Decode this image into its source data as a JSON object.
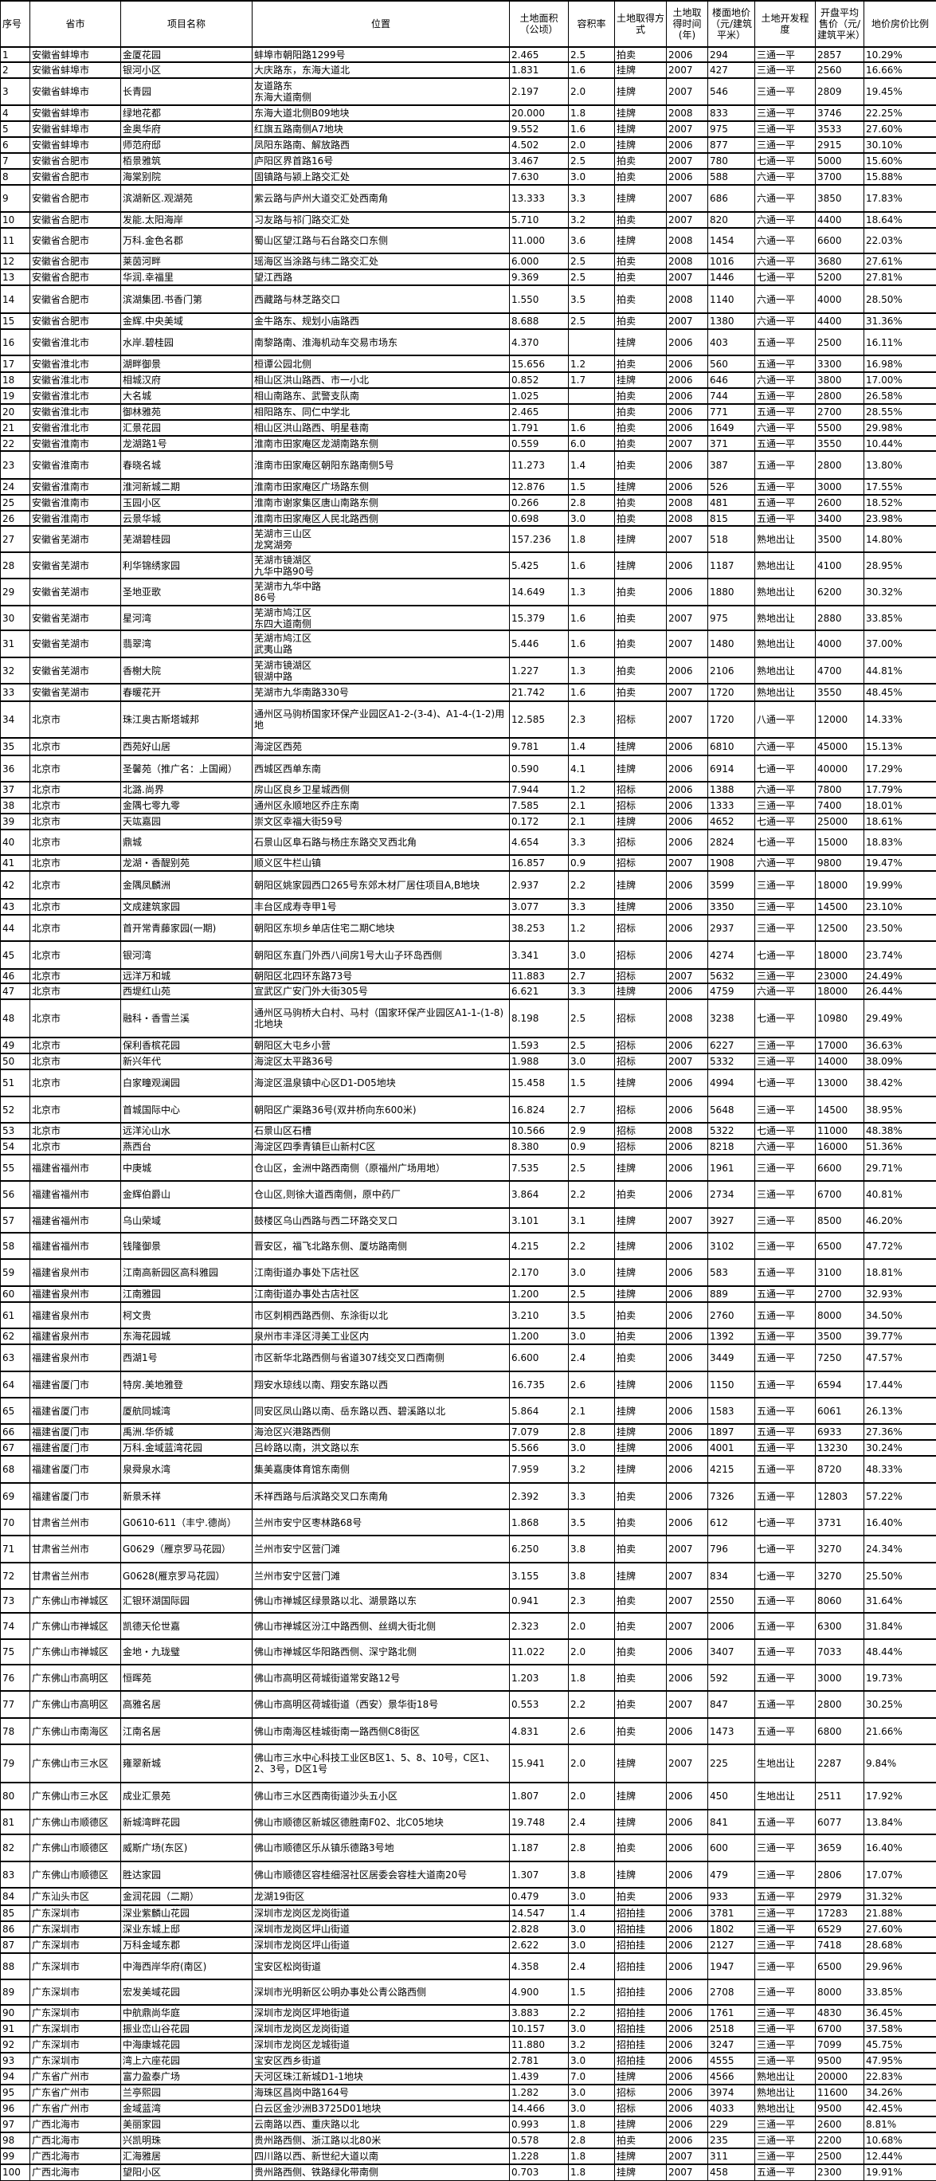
{
  "columns": [
    "序号",
    "省市",
    "项目名称",
    "位置",
    "土地面积（公顷）",
    "容积率",
    "土地取得方式",
    "土地取得时间(年)",
    "楼面地价（元/建筑平米）",
    "土地开发程度",
    "开盘平均售价（元/建筑平米）",
    "地价房价比例"
  ],
  "rows": [
    [
      "1",
      "安徽省蚌埠市",
      "金厦花园",
      "蚌埠市朝阳路1299号",
      "2.465",
      "2.5",
      "拍卖",
      "2006",
      "294",
      "三通一平",
      "2857",
      "10.29%"
    ],
    [
      "2",
      "安徽省蚌埠市",
      "银河小区",
      "大庆路东，东海大道北",
      "1.831",
      "1.6",
      "挂牌",
      "2007",
      "427",
      "三通一平",
      "2560",
      "16.66%"
    ],
    [
      "3",
      "安徽省蚌埠市",
      "长青园",
      "友道路东\n东海大道南侧",
      "2.197",
      "2.0",
      "挂牌",
      "2007",
      "546",
      "三通一平",
      "2809",
      "19.45%"
    ],
    [
      "4",
      "安徽省蚌埠市",
      "绿地花都",
      "东海大道北侧B09地块",
      "20.000",
      "1.8",
      "挂牌",
      "2008",
      "833",
      "三通一平",
      "3746",
      "22.25%"
    ],
    [
      "5",
      "安徽省蚌埠市",
      "金奥华府",
      "红旗五路南侧A7地块",
      "9.552",
      "1.6",
      "挂牌",
      "2007",
      "975",
      "三通一平",
      "3533",
      "27.60%"
    ],
    [
      "6",
      "安徽省蚌埠市",
      "师范府邸",
      "凤阳东路南、解放路西",
      "4.502",
      "2.0",
      "挂牌",
      "2006",
      "877",
      "三通一平",
      "2915",
      "30.10%"
    ],
    [
      "7",
      "安徽省合肥市",
      "栢景雅筑",
      "庐阳区界首路16号",
      "3.467",
      "2.5",
      "拍卖",
      "2007",
      "780",
      "七通一平",
      "5000",
      "15.60%"
    ],
    [
      "8",
      "安徽省合肥市",
      "海棠别院",
      "固镇路与颍上路交汇处",
      "7.630",
      "3.0",
      "拍卖",
      "2006",
      "588",
      "六通一平",
      "3700",
      "15.88%"
    ],
    [
      "9",
      "安徽省合肥市",
      "滨湖新区.观湖苑",
      "紫云路与庐州大道交汇处西南角",
      "13.333",
      "3.3",
      "挂牌",
      "2007",
      "686",
      "六通一平",
      "3850",
      "17.83%"
    ],
    [
      "10",
      "安徽省合肥市",
      "发能.太阳海岸",
      "习友路与祁门路交汇处",
      "5.710",
      "3.2",
      "拍卖",
      "2007",
      "820",
      "六通一平",
      "4400",
      "18.64%"
    ],
    [
      "11",
      "安徽省合肥市",
      "万科.金色名郡",
      "蜀山区望江路与石台路交口东侧",
      "11.000",
      "3.6",
      "挂牌",
      "2008",
      "1454",
      "六通一平",
      "6600",
      "22.03%"
    ],
    [
      "12",
      "安徽省合肥市",
      "莱茵河畔",
      "瑶海区当涂路与纬二路交汇处",
      "6.000",
      "2.5",
      "拍卖",
      "2008",
      "1016",
      "六通一平",
      "3680",
      "27.61%"
    ],
    [
      "13",
      "安徽省合肥市",
      "华润.幸福里",
      "望江西路",
      "9.369",
      "2.5",
      "拍卖",
      "2007",
      "1446",
      "七通一平",
      "5200",
      "27.81%"
    ],
    [
      "14",
      "安徽省合肥市",
      "滨湖集团.书香门第",
      "西藏路与林芝路交口",
      "1.550",
      "3.5",
      "拍卖",
      "2008",
      "1140",
      "六通一平",
      "4000",
      "28.50%"
    ],
    [
      "15",
      "安徽省合肥市",
      "金辉.中央美域",
      "金牛路东、规划小庙路西",
      "8.688",
      "2.5",
      "拍卖",
      "2007",
      "1380",
      "六通一平",
      "4400",
      "31.36%"
    ],
    [
      "16",
      "安徽省淮北市",
      "水岸.碧桂园",
      "南黎路南、淮海机动车交易市场东",
      "4.370",
      "",
      "挂牌",
      "2006",
      "403",
      "五通一平",
      "2500",
      "16.11%"
    ],
    [
      "17",
      "安徽省淮北市",
      "湖畔御景",
      "桓谭公园北侧",
      "15.656",
      "1.2",
      "拍卖",
      "2006",
      "560",
      "五通一平",
      "3300",
      "16.98%"
    ],
    [
      "18",
      "安徽省淮北市",
      "相城汉府",
      "相山区洪山路西、市一小北",
      "0.852",
      "1.7",
      "挂牌",
      "2006",
      "646",
      "六通一平",
      "3800",
      "17.00%"
    ],
    [
      "19",
      "安徽省淮北市",
      "大名城",
      "相山南路东、武警支队南",
      "1.025",
      "",
      "拍卖",
      "2006",
      "744",
      "五通一平",
      "2800",
      "26.58%"
    ],
    [
      "20",
      "安徽省淮北市",
      "御林雅苑",
      "相阳路东、同仁中学北",
      "2.465",
      "",
      "拍卖",
      "2006",
      "771",
      "五通一平",
      "2700",
      "28.55%"
    ],
    [
      "21",
      "安徽省淮北市",
      "汇景花园",
      "相山区洪山路西、明星巷南",
      "1.791",
      "1.6",
      "拍卖",
      "2006",
      "1649",
      "六通一平",
      "5500",
      "29.98%"
    ],
    [
      "22",
      "安徽省淮南市",
      "龙湖路1号",
      "淮南市田家庵区龙湖南路东侧",
      "0.559",
      "6.0",
      "拍卖",
      "2007",
      "371",
      "五通一平",
      "3550",
      "10.44%"
    ],
    [
      "23",
      "安徽省淮南市",
      "春晓名城",
      "淮南市田家庵区朝阳东路南侧5号",
      "11.273",
      "1.4",
      "拍卖",
      "2006",
      "387",
      "五通一平",
      "2800",
      "13.80%"
    ],
    [
      "24",
      "安徽省淮南市",
      "淮河新城二期",
      "淮南市田家庵区广场路东侧",
      "12.876",
      "1.5",
      "挂牌",
      "2006",
      "526",
      "五通一平",
      "3000",
      "17.55%"
    ],
    [
      "25",
      "安徽省淮南市",
      "玉园小区",
      "淮南市谢家集区唐山南路东侧",
      "0.266",
      "2.8",
      "拍卖",
      "2008",
      "481",
      "五通一平",
      "2600",
      "18.52%"
    ],
    [
      "26",
      "安徽省淮南市",
      "云景华城",
      "淮南市田家庵区人民北路西侧",
      "0.698",
      "3.0",
      "拍卖",
      "2008",
      "815",
      "五通一平",
      "3400",
      "23.98%"
    ],
    [
      "27",
      "安徽省芜湖市",
      "芜湖碧桂园",
      "芜湖市三山区\n龙窝湖旁",
      "157.236",
      "1.8",
      "挂牌",
      "2007",
      "518",
      "熟地出让",
      "3500",
      "14.80%"
    ],
    [
      "28",
      "安徽省芜湖市",
      "利华锦绣家园",
      "芜湖市镜湖区\n九华中路90号",
      "5.425",
      "1.6",
      "挂牌",
      "2006",
      "1187",
      "熟地出让",
      "4100",
      "28.95%"
    ],
    [
      "29",
      "安徽省芜湖市",
      "圣地亚歌",
      "芜湖市九华中路\n86号",
      "14.649",
      "1.3",
      "拍卖",
      "2006",
      "1880",
      "熟地出让",
      "6200",
      "30.32%"
    ],
    [
      "30",
      "安徽省芜湖市",
      "星河湾",
      "芜湖市鸠江区\n东四大道南侧",
      "15.379",
      "1.6",
      "拍卖",
      "2007",
      "975",
      "熟地出让",
      "2880",
      "33.85%"
    ],
    [
      "31",
      "安徽省芜湖市",
      "翡翠湾",
      "芜湖市鸠江区\n武夷山路",
      "5.446",
      "1.6",
      "拍卖",
      "2007",
      "1480",
      "熟地出让",
      "4000",
      "37.00%"
    ],
    [
      "32",
      "安徽省芜湖市",
      "香榭大院",
      "芜湖市镜湖区\n银湖中路",
      "1.227",
      "1.3",
      "拍卖",
      "2006",
      "2106",
      "熟地出让",
      "4700",
      "44.81%"
    ],
    [
      "33",
      "安徽省芜湖市",
      "春暖花开",
      "芜湖市九华南路330号",
      "21.742",
      "1.6",
      "拍卖",
      "2007",
      "1720",
      "熟地出让",
      "3550",
      "48.45%"
    ],
    [
      "34",
      "北京市",
      "珠江奥古斯塔城邦",
      "通州区马驹桥国家环保产业园区A1-2-(3-4)、A1-4-(1-2)用地",
      "12.585",
      "2.3",
      "招标",
      "2007",
      "1720",
      "八通一平",
      "12000",
      "14.33%"
    ],
    [
      "35",
      "北京市",
      "西苑好山居",
      "海淀区西苑",
      "9.781",
      "1.4",
      "挂牌",
      "2006",
      "6810",
      "六通一平",
      "45000",
      "15.13%"
    ],
    [
      "36",
      "北京市",
      "圣馨苑（推广名：上国阙）",
      "西城区西单东南",
      "0.590",
      "4.1",
      "挂牌",
      "2006",
      "6914",
      "七通一平",
      "40000",
      "17.29%"
    ],
    [
      "37",
      "北京市",
      "北潞.尚界",
      "房山区良乡卫星城西侧",
      "7.944",
      "1.2",
      "招标",
      "2006",
      "1388",
      "六通一平",
      "7800",
      "17.79%"
    ],
    [
      "38",
      "北京市",
      "金隅七零九零",
      "通州区永顺地区乔庄东南",
      "7.585",
      "2.1",
      "招标",
      "2006",
      "1333",
      "三通一平",
      "7400",
      "18.01%"
    ],
    [
      "39",
      "北京市",
      "天竑嘉园",
      "崇文区幸福大街59号",
      "0.172",
      "2.1",
      "挂牌",
      "2006",
      "4652",
      "七通一平",
      "25000",
      "18.61%"
    ],
    [
      "40",
      "北京市",
      "鼎城",
      "石景山区阜石路与杨庄东路交叉西北角",
      "4.654",
      "3.3",
      "招标",
      "2006",
      "2824",
      "七通一平",
      "15000",
      "18.83%"
    ],
    [
      "41",
      "北京市",
      "龙湖・香醍别苑",
      "顺义区牛栏山镇",
      "16.857",
      "0.9",
      "招标",
      "2007",
      "1908",
      "六通一平",
      "9800",
      "19.47%"
    ],
    [
      "42",
      "北京市",
      "金隅凤麟洲",
      "朝阳区姚家园西口265号东郊木材厂居住项目A,B地块",
      "2.937",
      "2.2",
      "挂牌",
      "2006",
      "3599",
      "三通一平",
      "18000",
      "19.99%"
    ],
    [
      "43",
      "北京市",
      "文成建筑家园",
      "丰台区成寿寺甲1号",
      "3.077",
      "3.3",
      "挂牌",
      "2006",
      "3350",
      "三通一平",
      "14500",
      "23.10%"
    ],
    [
      "44",
      "北京市",
      "首开常青藤家园(一期)",
      "朝阳区东坝乡单店住宅二期C地块",
      "38.253",
      "1.2",
      "招标",
      "2006",
      "2937",
      "三通一平",
      "12500",
      "23.50%"
    ],
    [
      "45",
      "北京市",
      "银河湾",
      "朝阳区东直门外西八间房1号大山子环岛西侧",
      "3.341",
      "3.0",
      "招标",
      "2006",
      "4274",
      "七通一平",
      "18000",
      "23.74%"
    ],
    [
      "46",
      "北京市",
      "远洋万和城",
      "朝阳区北四环东路73号",
      "11.883",
      "2.7",
      "招标",
      "2007",
      "5632",
      "三通一平",
      "23000",
      "24.49%"
    ],
    [
      "47",
      "北京市",
      "西堤红山苑",
      "宣武区广安门外大街305号",
      "6.621",
      "3.3",
      "挂牌",
      "2006",
      "4759",
      "六通一平",
      "18000",
      "26.44%"
    ],
    [
      "48",
      "北京市",
      "融科・香雪兰溪",
      "通州区马驹桥大白村、马村（国家环保产业园区A1-1-(1-8)北地块",
      "8.198",
      "2.5",
      "招标",
      "2008",
      "3238",
      "七通一平",
      "10980",
      "29.49%"
    ],
    [
      "49",
      "北京市",
      "保利香槟花园",
      "朝阳区大屯乡小营",
      "1.593",
      "2.5",
      "招标",
      "2006",
      "6227",
      "三通一平",
      "17000",
      "36.63%"
    ],
    [
      "50",
      "北京市",
      "新兴年代",
      "海淀区太平路36号",
      "1.988",
      "3.0",
      "招标",
      "2007",
      "5332",
      "三通一平",
      "14000",
      "38.09%"
    ],
    [
      "51",
      "北京市",
      "白家疃观澜园",
      "海淀区温泉镇中心区D1-D05地块",
      "15.458",
      "1.5",
      "挂牌",
      "2006",
      "4994",
      "七通一平",
      "13000",
      "38.42%"
    ],
    [
      "52",
      "北京市",
      "首城国际中心",
      "朝阳区广渠路36号(双井桥向东600米)",
      "16.824",
      "2.7",
      "招标",
      "2006",
      "5648",
      "三通一平",
      "14500",
      "38.95%"
    ],
    [
      "53",
      "北京市",
      "远洋沁山水",
      "石景山区石槽",
      "10.566",
      "2.9",
      "招标",
      "2008",
      "5322",
      "七通一平",
      "11000",
      "48.38%"
    ],
    [
      "54",
      "北京市",
      "燕西台",
      "海淀区四季青镇巨山新村C区",
      "8.380",
      "0.9",
      "招标",
      "2006",
      "8218",
      "六通一平",
      "16000",
      "51.36%"
    ],
    [
      "55",
      "福建省福州市",
      "中庚城",
      "仓山区，金洲中路西南侧（原福州广场用地）",
      "7.535",
      "2.5",
      "挂牌",
      "2006",
      "1961",
      "三通一平",
      "6600",
      "29.71%"
    ],
    [
      "56",
      "福建省福州市",
      "金辉伯爵山",
      "仓山区,则徐大道西南侧，原中药厂",
      "3.864",
      "2.2",
      "拍卖",
      "2006",
      "2734",
      "三通一平",
      "6700",
      "40.81%"
    ],
    [
      "57",
      "福建省福州市",
      "乌山荣域",
      "鼓楼区乌山西路与西二环路交叉口",
      "3.101",
      "3.1",
      "挂牌",
      "2007",
      "3927",
      "三通一平",
      "8500",
      "46.20%"
    ],
    [
      "58",
      "福建省福州市",
      "钱隆御景",
      "晋安区，福飞北路东侧、厦坊路南侧",
      "4.215",
      "2.2",
      "挂牌",
      "2006",
      "3102",
      "三通一平",
      "6500",
      "47.72%"
    ],
    [
      "59",
      "福建省泉州市",
      "江南高新园区高科雅园",
      "江南街道办事处下店社区",
      "2.170",
      "3.0",
      "挂牌",
      "2006",
      "583",
      "五通一平",
      "3100",
      "18.81%"
    ],
    [
      "60",
      "福建省泉州市",
      "江南雅园",
      "江南街道办事处古店社区",
      "1.200",
      "2.5",
      "挂牌",
      "2006",
      "889",
      "五通一平",
      "2700",
      "32.93%"
    ],
    [
      "61",
      "福建省泉州市",
      "柯文贵",
      "市区刺桐西路西侧、东涂街以北",
      "3.210",
      "3.5",
      "拍卖",
      "2006",
      "2760",
      "五通一平",
      "8000",
      "34.50%"
    ],
    [
      "62",
      "福建省泉州市",
      "东海花园城",
      "泉州市丰泽区浔美工业区内",
      "1.200",
      "3.0",
      "拍卖",
      "2006",
      "1392",
      "五通一平",
      "3500",
      "39.77%"
    ],
    [
      "63",
      "福建省泉州市",
      "西湖1号",
      "市区新华北路西侧与省道307线交叉口西南侧",
      "6.600",
      "2.4",
      "拍卖",
      "2006",
      "3449",
      "五通一平",
      "7250",
      "47.57%"
    ],
    [
      "64",
      "福建省厦门市",
      "特房.美地雅登",
      "翔安水琼线以南、翔安东路以西",
      "16.735",
      "2.6",
      "挂牌",
      "2006",
      "1150",
      "五通一平",
      "6594",
      "17.44%"
    ],
    [
      "65",
      "福建省厦门市",
      "厦航同城湾",
      "同安区凤山路以南、岳东路以西、碧溪路以北",
      "5.864",
      "2.1",
      "挂牌",
      "2006",
      "1583",
      "五通一平",
      "6061",
      "26.13%"
    ],
    [
      "66",
      "福建省厦门市",
      "禹洲.华侨城",
      "海沧区兴港路西侧",
      "7.079",
      "2.8",
      "挂牌",
      "2006",
      "1897",
      "五通一平",
      "6933",
      "27.36%"
    ],
    [
      "67",
      "福建省厦门市",
      "万科.金域蓝湾花园",
      "吕岭路以南，洪文路以东",
      "5.566",
      "3.0",
      "挂牌",
      "2006",
      "4001",
      "五通一平",
      "13230",
      "30.24%"
    ],
    [
      "68",
      "福建省厦门市",
      "泉舜泉水湾",
      "集美嘉庚体育馆东南侧",
      "7.959",
      "3.2",
      "挂牌",
      "2006",
      "4215",
      "五通一平",
      "8720",
      "48.33%"
    ],
    [
      "69",
      "福建省厦门市",
      "新景禾祥",
      "禾祥西路与后滨路交叉口东南角",
      "2.392",
      "3.3",
      "拍卖",
      "2006",
      "7326",
      "五通一平",
      "12803",
      "57.22%"
    ],
    [
      "70",
      "甘肃省兰州市",
      "G0610-611（丰宁.德尚）",
      "兰州市安宁区枣林路68号",
      "1.868",
      "3.5",
      "拍卖",
      "2006",
      "612",
      "七通一平",
      "3731",
      "16.40%"
    ],
    [
      "71",
      "甘肃省兰州市",
      "G0629（雁京罗马花园）",
      "兰州市安宁区营门滩",
      "6.250",
      "3.8",
      "拍卖",
      "2007",
      "796",
      "七通一平",
      "3270",
      "24.34%"
    ],
    [
      "72",
      "甘肃省兰州市",
      "G0628(雁京罗马花园）",
      "兰州市安宁区营门滩",
      "3.155",
      "3.8",
      "挂牌",
      "2007",
      "834",
      "七通一平",
      "3270",
      "25.50%"
    ],
    [
      "73",
      "广东佛山市禅城区",
      "汇银环湖国际园",
      "佛山市禅城区绿景路以北、湖景路以东",
      "0.941",
      "2.3",
      "拍卖",
      "2007",
      "2550",
      "五通一平",
      "8060",
      "31.64%"
    ],
    [
      "74",
      "广东佛山市禅城区",
      "凯德天伦世嘉",
      "佛山市禅城区汾江中路西侧、丝绸大街北侧",
      "2.323",
      "2.0",
      "拍卖",
      "2007",
      "2006",
      "五通一平",
      "6300",
      "31.84%"
    ],
    [
      "75",
      "广东佛山市禅城区",
      "金地・九珑璧",
      "佛山市禅城区华阳路西侧、深宁路北侧",
      "11.022",
      "2.0",
      "拍卖",
      "2006",
      "3407",
      "五通一平",
      "7033",
      "48.44%"
    ],
    [
      "76",
      "广东佛山市高明区",
      "恒晖苑",
      "佛山市高明区荷城街道常安路12号",
      "1.203",
      "1.8",
      "拍卖",
      "2006",
      "592",
      "五通一平",
      "3000",
      "19.73%"
    ],
    [
      "77",
      "广东佛山市高明区",
      "高雅名居",
      "佛山市高明区荷城街道（西安）景华街18号",
      "0.553",
      "2.2",
      "拍卖",
      "2007",
      "847",
      "五通一平",
      "2800",
      "30.25%"
    ],
    [
      "78",
      "广东佛山市南海区",
      "江南名居",
      "佛山市南海区桂城街南一路西侧C8街区",
      "4.831",
      "2.6",
      "拍卖",
      "2006",
      "1473",
      "五通一平",
      "6800",
      "21.66%"
    ],
    [
      "79",
      "广东佛山市三水区",
      "雍翠新城",
      "佛山市三水中心科技工业区B区1、5、8、10号，C区1、2、3号，D区1号",
      "15.941",
      "2.0",
      "挂牌",
      "2007",
      "225",
      "生地出让",
      "2287",
      "9.84%"
    ],
    [
      "80",
      "广东佛山市三水区",
      "成业汇景苑",
      "佛山市三水区西南街道沙头五小区",
      "1.807",
      "2.0",
      "挂牌",
      "2006",
      "450",
      "生地出让",
      "2511",
      "17.92%"
    ],
    [
      "81",
      "广东佛山市顺德区",
      "新城湾畔花园",
      "佛山市顺德区新城区德胜南F02、北C05地块",
      "19.748",
      "2.4",
      "挂牌",
      "2006",
      "841",
      "五通一平",
      "6077",
      "13.84%"
    ],
    [
      "82",
      "广东佛山市顺德区",
      "威斯广场(东区)",
      "佛山市顺德区乐从镇乐德路3号地",
      "1.187",
      "2.8",
      "拍卖",
      "2006",
      "600",
      "三通一平",
      "3659",
      "16.40%"
    ],
    [
      "83",
      "广东佛山市顺德区",
      "胜达家园",
      "佛山市顺德区容桂细滘社区居委会容桂大道南20号",
      "1.307",
      "3.8",
      "挂牌",
      "2006",
      "479",
      "三通一平",
      "2806",
      "17.07%"
    ],
    [
      "84",
      "广东汕头市区",
      "金润花园（二期）",
      "龙湖19街区",
      "0.479",
      "3.0",
      "拍卖",
      "2006",
      "933",
      "五通一平",
      "2979",
      "31.32%"
    ],
    [
      "85",
      "广东深圳市",
      "深业紫麟山花园",
      "深圳市龙岗区龙岗街道",
      "14.547",
      "1.4",
      "招拍挂",
      "2006",
      "3781",
      "三通一平",
      "17283",
      "21.88%"
    ],
    [
      "86",
      "广东深圳市",
      "深业东城上邸",
      "深圳市龙岗区坪山街道",
      "2.828",
      "3.0",
      "招拍挂",
      "2006",
      "1802",
      "三通一平",
      "6529",
      "27.60%"
    ],
    [
      "87",
      "广东深圳市",
      "万科金域东郡",
      "深圳市龙岗区坪山街道",
      "2.622",
      "3.0",
      "招拍挂",
      "2006",
      "2127",
      "三通一平",
      "7418",
      "28.68%"
    ],
    [
      "88",
      "广东深圳市",
      "中海西岸华府(南区)",
      "宝安区松岗街道",
      "4.358",
      "2.4",
      "招拍挂",
      "2006",
      "1947",
      "三通一平",
      "6500",
      "29.96%"
    ],
    [
      "89",
      "广东深圳市",
      "宏发美域花园",
      "深圳市光明新区公明办事处公青公路西侧",
      "4.900",
      "1.5",
      "招拍挂",
      "2006",
      "2708",
      "三通一平",
      "8000",
      "33.85%"
    ],
    [
      "90",
      "广东深圳市",
      "中航鼎尚华庭",
      "深圳市龙岗区坪地街道",
      "3.883",
      "2.2",
      "招拍挂",
      "2006",
      "1761",
      "三通一平",
      "4830",
      "36.45%"
    ],
    [
      "91",
      "广东深圳市",
      "振业峦山谷花园",
      "深圳市龙岗区龙岗街道",
      "10.157",
      "3.0",
      "招拍挂",
      "2006",
      "2518",
      "三通一平",
      "6700",
      "37.58%"
    ],
    [
      "92",
      "广东深圳市",
      "中海康城花园",
      "深圳市龙岗区龙城街道",
      "11.880",
      "3.2",
      "招拍挂",
      "2006",
      "3247",
      "三通一平",
      "7099",
      "45.75%"
    ],
    [
      "93",
      "广东深圳市",
      "湾上六座花园",
      "宝安区西乡街道",
      "2.781",
      "3.0",
      "招拍挂",
      "2006",
      "4555",
      "三通一平",
      "9500",
      "47.95%"
    ],
    [
      "94",
      "广东省广州市",
      "富力盈泰广场",
      "天河区珠江新城D1-1地块",
      "1.439",
      "7.0",
      "挂牌",
      "2006",
      "4566",
      "熟地出让",
      "20000",
      "22.83%"
    ],
    [
      "95",
      "广东省广州市",
      "兰亭熙园",
      "海珠区昌岗中路164号",
      "1.282",
      "3.0",
      "招标",
      "2006",
      "3974",
      "熟地出让",
      "11600",
      "34.26%"
    ],
    [
      "96",
      "广东省广州市",
      "金域蓝湾",
      "白云区金沙洲B3725D01地块",
      "14.466",
      "3.0",
      "招标",
      "2006",
      "4033",
      "熟地出让",
      "9500",
      "42.45%"
    ],
    [
      "97",
      "广西北海市",
      "美丽家园",
      "云南路以西、重庆路以北",
      "0.993",
      "1.8",
      "挂牌",
      "2006",
      "229",
      "三通一平",
      "2600",
      "8.81%"
    ],
    [
      "98",
      "广西北海市",
      "兴凯明珠",
      "贵州路西侧、浙江路以北80米",
      "0.578",
      "2.8",
      "拍卖",
      "2006",
      "235",
      "三通一平",
      "2200",
      "10.68%"
    ],
    [
      "99",
      "广西北海市",
      "汇海雅居",
      "四川路以西、新世纪大道以南",
      "1.228",
      "1.8",
      "挂牌",
      "2007",
      "311",
      "三通一平",
      "2500",
      "12.44%"
    ],
    [
      "100",
      "广西北海市",
      "望阳小区",
      "贵州路西侧、铁路绿化带南侧",
      "0.703",
      "1.8",
      "挂牌",
      "2007",
      "458",
      "五通一平",
      "2300",
      "19.91%"
    ]
  ]
}
